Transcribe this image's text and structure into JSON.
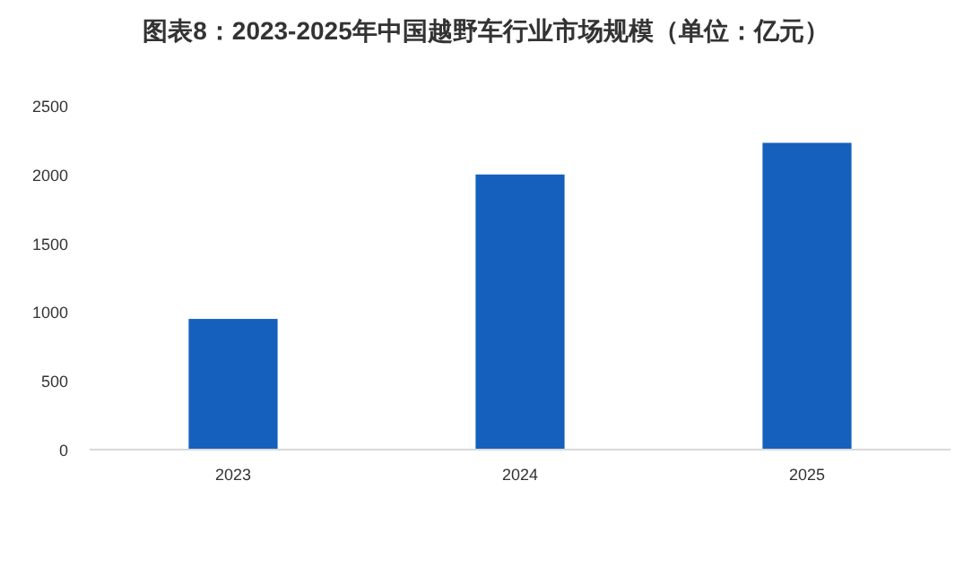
{
  "chart_data": {
    "type": "bar",
    "title": "图表8：2023-2025年中国越野车行业市场规模（单位：亿元）",
    "categories": [
      "2023",
      "2024",
      "2025"
    ],
    "series": [
      {
        "color": "#1560bd",
        "values": [
          950,
          2000,
          2230
        ]
      }
    ],
    "ylim": [
      0,
      2500
    ],
    "yticks": [
      0,
      500,
      1000,
      1500,
      2000,
      2500
    ],
    "grid": false
  }
}
